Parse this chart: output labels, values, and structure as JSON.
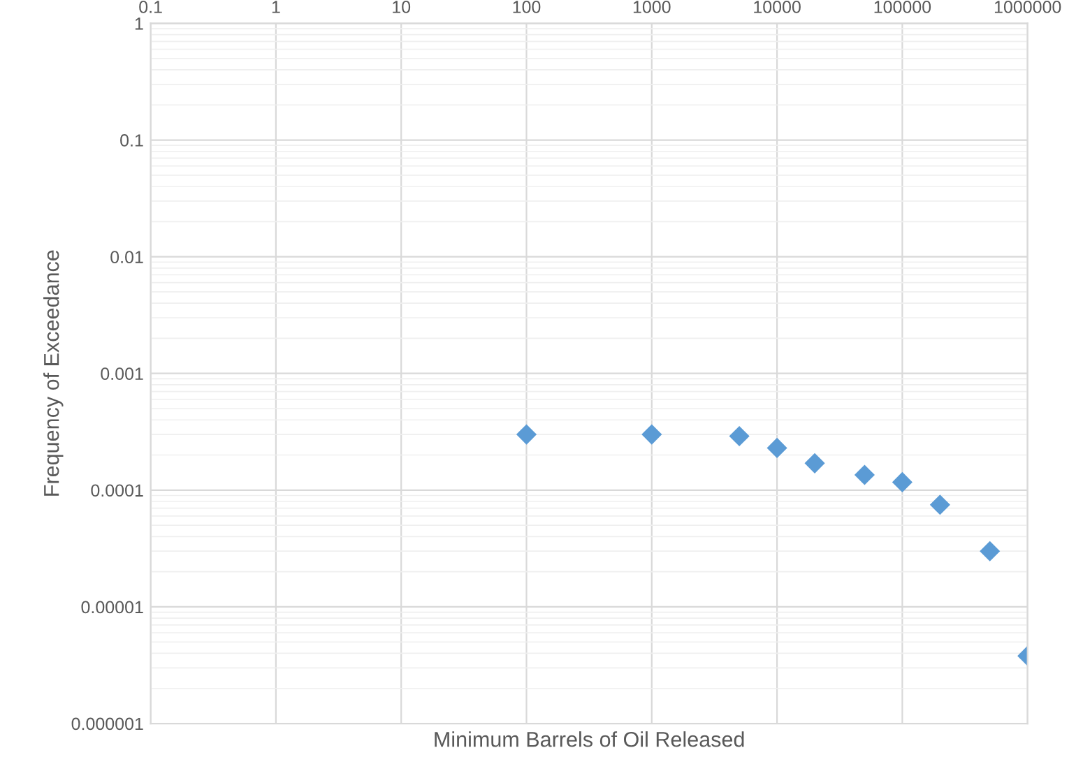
{
  "chart_data": {
    "type": "scatter",
    "xlabel": "Minimum Barrels of Oil Released",
    "ylabel": "Frequency of Exceedance",
    "log": "xy",
    "x": [
      100,
      1000,
      5000,
      10000,
      20000,
      50000,
      100000,
      200000,
      500000,
      1000000
    ],
    "series": [
      {
        "color": "#5b9bd5",
        "values": [
          0.0003,
          0.0003,
          0.00029,
          0.00023,
          0.00017,
          0.000135,
          0.000117,
          7.5e-05,
          3e-05,
          3.8e-06
        ]
      }
    ],
    "xlim": [
      0.1,
      1000000
    ],
    "xticks": [
      0.1,
      1,
      10,
      100,
      1000,
      10000,
      100000,
      1000000
    ],
    "ylim": [
      1e-06,
      1
    ],
    "yticks": [
      {
        "value": 1e-06,
        "label": "0.000001"
      },
      {
        "value": 1e-05,
        "label": "0.00001"
      },
      0.0001,
      0.001,
      0.01,
      0.1,
      1
    ],
    "grid": true,
    "marker": "diamond"
  }
}
